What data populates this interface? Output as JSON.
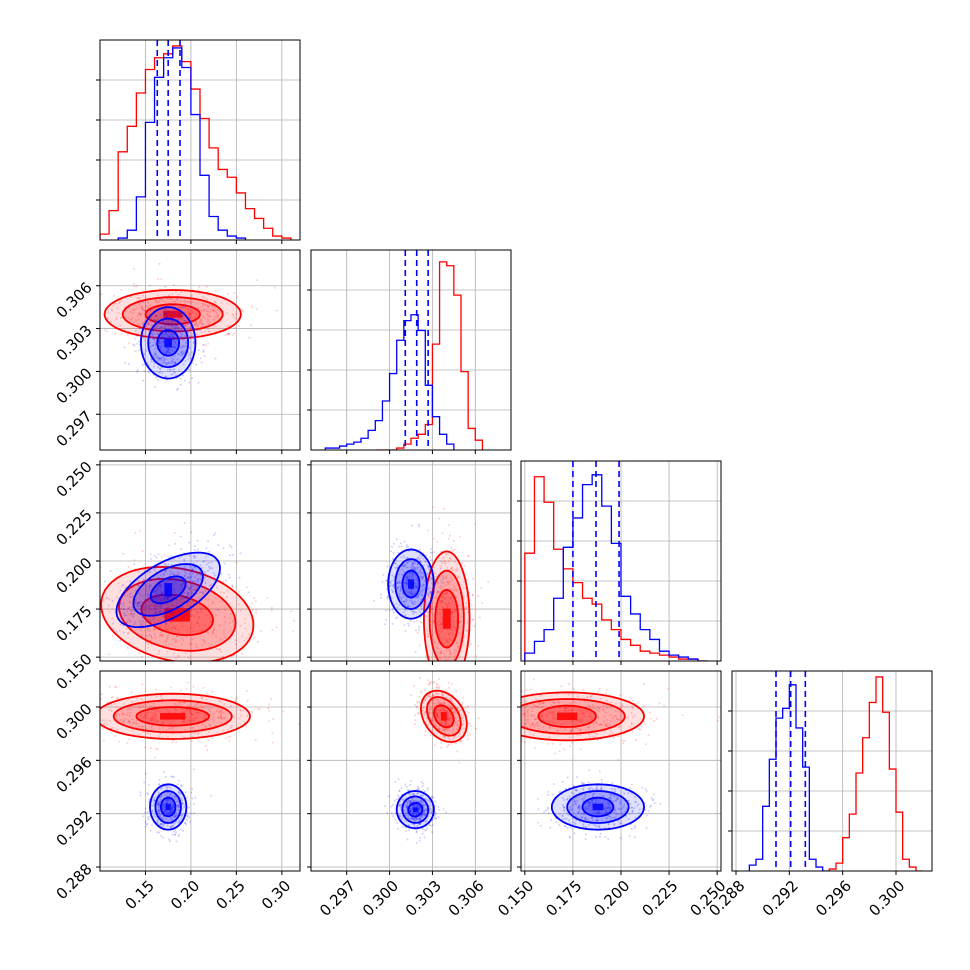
{
  "colors": {
    "red": "#ff0000",
    "blue": "#0000ff",
    "grid": "#b0b0b0",
    "axes": "#000000"
  },
  "chart_data": {
    "type": "corner",
    "grid": true,
    "parameters": [
      {
        "range": [
          0.1,
          0.32
        ],
        "ticks": [
          "0.15",
          "0.20",
          "0.25",
          "0.30"
        ],
        "tick_values": [
          0.15,
          0.2,
          0.25,
          0.3
        ]
      },
      {
        "range": [
          0.2945,
          0.3085
        ],
        "ticks": [
          "0.297",
          "0.300",
          "0.303",
          "0.306"
        ],
        "tick_values": [
          0.297,
          0.3,
          0.303,
          0.306
        ]
      },
      {
        "range": [
          0.148,
          0.252
        ],
        "ticks": [
          "0.150",
          "0.175",
          "0.200",
          "0.225",
          "0.250"
        ],
        "tick_values": [
          0.15,
          0.175,
          0.2,
          0.225,
          0.25
        ]
      },
      {
        "range": [
          0.2877,
          0.3027
        ],
        "ticks": [
          "0.288",
          "0.292",
          "0.296",
          "0.300"
        ],
        "tick_values": [
          0.288,
          0.292,
          0.296,
          0.3
        ]
      }
    ],
    "series": [
      {
        "color": "red",
        "marginals": [
          {
            "edges": [
              0.1,
              0.11,
              0.12,
              0.13,
              0.14,
              0.15,
              0.16,
              0.17,
              0.18,
              0.19,
              0.2,
              0.21,
              0.22,
              0.23,
              0.24,
              0.25,
              0.26,
              0.27,
              0.28,
              0.29,
              0.3,
              0.31
            ],
            "counts": [
              0.03,
              0.15,
              0.45,
              0.58,
              0.75,
              0.87,
              0.93,
              0.95,
              0.99,
              0.91,
              0.77,
              0.62,
              0.47,
              0.36,
              0.32,
              0.24,
              0.16,
              0.11,
              0.06,
              0.02,
              0.01
            ]
          },
          {
            "edges": [
              0.299,
              0.2995,
              0.3,
              0.3005,
              0.301,
              0.3015,
              0.302,
              0.3025,
              0.303,
              0.3035,
              0.304,
              0.3045,
              0.305,
              0.3055,
              0.306,
              0.3065
            ],
            "counts": [
              0.0,
              0.0,
              0.0,
              0.01,
              0.03,
              0.06,
              0.08,
              0.13,
              0.54,
              0.96,
              0.94,
              0.79,
              0.4,
              0.11,
              0.05
            ]
          },
          {
            "edges": [
              0.15,
              0.155,
              0.16,
              0.165,
              0.17,
              0.175,
              0.18,
              0.185,
              0.19,
              0.195,
              0.2,
              0.205,
              0.21,
              0.215,
              0.22,
              0.225,
              0.23,
              0.235,
              0.24,
              0.245
            ],
            "counts": [
              0.55,
              0.94,
              0.81,
              0.57,
              0.47,
              0.4,
              0.32,
              0.29,
              0.21,
              0.16,
              0.11,
              0.08,
              0.05,
              0.04,
              0.03,
              0.02,
              0.01,
              0.01,
              0.0
            ]
          },
          {
            "edges": [
              0.295,
              0.2955,
              0.296,
              0.2965,
              0.297,
              0.2975,
              0.298,
              0.2985,
              0.299,
              0.2995,
              0.3,
              0.3005,
              0.301,
              0.3015,
              0.302
            ],
            "counts": [
              0.01,
              0.04,
              0.17,
              0.29,
              0.5,
              0.68,
              0.86,
              0.99,
              0.81,
              0.52,
              0.3,
              0.06,
              0.02,
              0.0
            ]
          }
        ],
        "centers": [
          0.18,
          0.304,
          0.165,
          0.299
        ],
        "contours": [
          {
            "x": 0,
            "y": 1,
            "center": [
              0.18,
              0.304
            ],
            "rx": [
              0.03,
              0.055,
              0.075
            ],
            "ry": [
              0.0007,
              0.0012,
              0.0017
            ],
            "rot": 0
          },
          {
            "x": 0,
            "y": 2,
            "center": [
              0.185,
              0.172
            ],
            "rx": [
              0.04,
              0.065,
              0.085
            ],
            "ry": [
              0.01,
              0.018,
              0.024
            ],
            "rot": 12
          },
          {
            "x": 1,
            "y": 2,
            "center": [
              0.304,
              0.17
            ],
            "rx": [
              0.0008,
              0.0012,
              0.0016
            ],
            "ry": [
              0.015,
              0.025,
              0.035
            ],
            "rot": 0
          },
          {
            "x": 0,
            "y": 3,
            "center": [
              0.18,
              0.2993
            ],
            "rx": [
              0.04,
              0.065,
              0.085
            ],
            "ry": [
              0.0007,
              0.0012,
              0.0017
            ],
            "rot": 0
          },
          {
            "x": 1,
            "y": 3,
            "center": [
              0.3038,
              0.2993
            ],
            "rx": [
              0.0006,
              0.001,
              0.0014
            ],
            "ry": [
              0.0009,
              0.0016,
              0.0021
            ],
            "rot": -35
          },
          {
            "x": 2,
            "y": 3,
            "center": [
              0.172,
              0.2993
            ],
            "rx": [
              0.015,
              0.03,
              0.04
            ],
            "ry": [
              0.0008,
              0.0013,
              0.0018
            ],
            "rot": 0
          }
        ]
      },
      {
        "color": "blue",
        "marginals": [
          {
            "edges": [
              0.12,
              0.13,
              0.14,
              0.15,
              0.16,
              0.17,
              0.18,
              0.19,
              0.2,
              0.21,
              0.22,
              0.23,
              0.24,
              0.25,
              0.26
            ],
            "counts": [
              0.01,
              0.05,
              0.22,
              0.6,
              0.83,
              0.93,
              0.98,
              0.88,
              0.64,
              0.33,
              0.12,
              0.05,
              0.02,
              0.01
            ]
          },
          {
            "edges": [
              0.2955,
              0.296,
              0.2965,
              0.297,
              0.2975,
              0.298,
              0.2985,
              0.299,
              0.2995,
              0.3,
              0.3005,
              0.301,
              0.3015,
              0.302,
              0.3025,
              0.303,
              0.3035,
              0.304,
              0.3045
            ],
            "counts": [
              0.01,
              0.01,
              0.02,
              0.03,
              0.04,
              0.06,
              0.1,
              0.15,
              0.25,
              0.39,
              0.56,
              0.66,
              0.69,
              0.61,
              0.33,
              0.17,
              0.08,
              0.03
            ]
          },
          {
            "edges": [
              0.15,
              0.155,
              0.16,
              0.165,
              0.17,
              0.175,
              0.18,
              0.185,
              0.19,
              0.195,
              0.2,
              0.205,
              0.21,
              0.215,
              0.22,
              0.225,
              0.23,
              0.235,
              0.24,
              0.245
            ],
            "counts": [
              0.04,
              0.1,
              0.16,
              0.32,
              0.58,
              0.73,
              0.9,
              0.95,
              0.79,
              0.6,
              0.33,
              0.24,
              0.16,
              0.11,
              0.05,
              0.03,
              0.02,
              0.01,
              0.0
            ]
          },
          {
            "edges": [
              0.289,
              0.2895,
              0.29,
              0.2905,
              0.291,
              0.2915,
              0.292,
              0.2925,
              0.293,
              0.2935,
              0.294,
              0.2945,
              0.295
            ],
            "counts": [
              0.03,
              0.06,
              0.33,
              0.57,
              0.78,
              0.83,
              0.95,
              0.73,
              0.53,
              0.06,
              0.02,
              0.0
            ]
          }
        ],
        "quantiles": [
          [
            0.163,
            0.175,
            0.188
          ],
          [
            0.3011,
            0.3019,
            0.3027
          ],
          [
            0.175,
            0.187,
            0.199
          ],
          [
            0.291,
            0.2921,
            0.2932
          ]
        ],
        "centers": [
          0.175,
          0.3018,
          0.188,
          0.2922
        ],
        "contours": [
          {
            "x": 0,
            "y": 1,
            "center": [
              0.175,
              0.302
            ],
            "rx": [
              0.012,
              0.022,
              0.03
            ],
            "ry": [
              0.0009,
              0.0017,
              0.0025
            ],
            "rot": 0
          },
          {
            "x": 0,
            "y": 2,
            "center": [
              0.175,
              0.185
            ],
            "rx": [
              0.012,
              0.022,
              0.03
            ],
            "ry": [
              0.01,
              0.02,
              0.03
            ],
            "rot": 60
          },
          {
            "x": 1,
            "y": 2,
            "center": [
              0.3015,
              0.188
            ],
            "rx": [
              0.0006,
              0.0011,
              0.0016
            ],
            "ry": [
              0.007,
              0.013,
              0.018
            ],
            "rot": 0
          },
          {
            "x": 0,
            "y": 3,
            "center": [
              0.175,
              0.2925
            ],
            "rx": [
              0.008,
              0.014,
              0.02
            ],
            "ry": [
              0.0007,
              0.0012,
              0.0017
            ],
            "rot": 0
          },
          {
            "x": 1,
            "y": 3,
            "center": [
              0.3018,
              0.2923
            ],
            "rx": [
              0.0005,
              0.0009,
              0.0013
            ],
            "ry": [
              0.0005,
              0.001,
              0.0014
            ],
            "rot": -30
          },
          {
            "x": 2,
            "y": 3,
            "center": [
              0.188,
              0.2925
            ],
            "rx": [
              0.008,
              0.016,
              0.024
            ],
            "ry": [
              0.0007,
              0.0012,
              0.0017
            ],
            "rot": 0
          }
        ]
      }
    ]
  }
}
